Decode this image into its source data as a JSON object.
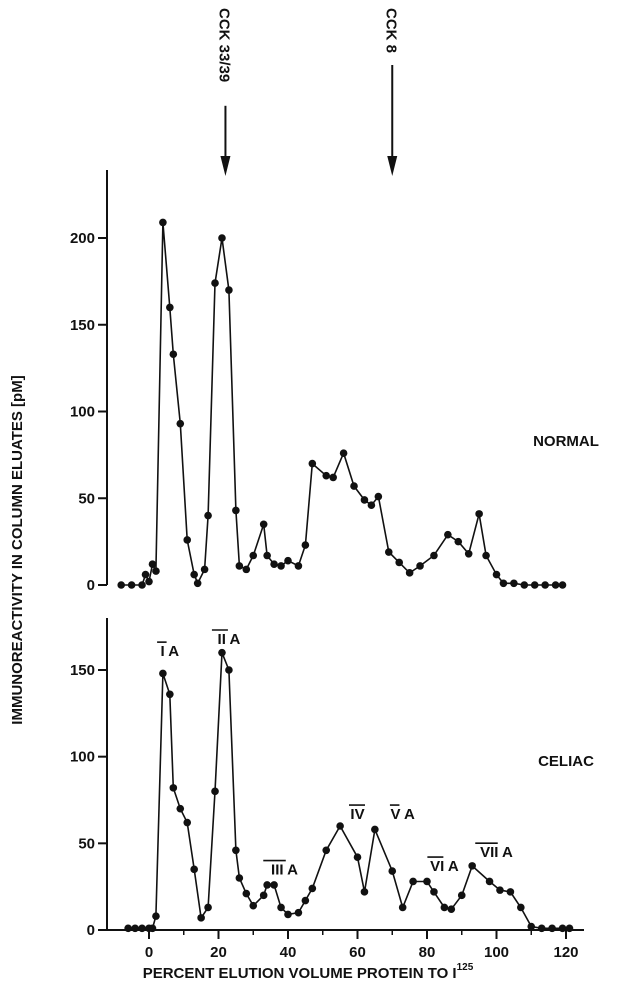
{
  "chart_data": {
    "type": "line",
    "xlabel": "PERCENT ELUTION VOLUME PROTEIN TO I",
    "xlabel_superscript": "125",
    "ylabel": "IMMUNOREACTIVITY IN COLUMN ELUATES [pM]",
    "x_ticks": [
      0,
      20,
      40,
      60,
      80,
      100,
      120
    ],
    "xlim": [
      -9,
      125
    ],
    "markers": [
      {
        "label": "CCK 33/39",
        "x": 22
      },
      {
        "label": "CCK 8",
        "x": 70
      }
    ],
    "panels": [
      {
        "label": "NORMAL",
        "ylim": [
          0,
          240
        ],
        "y_ticks": [
          0,
          50,
          100,
          150,
          200
        ],
        "x": [
          -8,
          -5,
          -2,
          -1,
          0,
          1,
          2,
          4,
          6,
          7,
          9,
          11,
          13,
          14,
          16,
          17,
          19,
          21,
          23,
          25,
          26,
          28,
          30,
          33,
          34,
          36,
          38,
          40,
          43,
          45,
          47,
          51,
          53,
          56,
          59,
          62,
          64,
          66,
          69,
          72,
          75,
          78,
          82,
          86,
          89,
          92,
          95,
          97,
          100,
          102,
          105,
          108,
          111,
          114,
          117,
          119
        ],
        "y": [
          0,
          0,
          0,
          6,
          2,
          12,
          8,
          209,
          160,
          133,
          93,
          26,
          6,
          1,
          9,
          40,
          174,
          200,
          170,
          43,
          11,
          9,
          17,
          35,
          17,
          12,
          11,
          14,
          11,
          23,
          70,
          63,
          62,
          76,
          57,
          49,
          46,
          51,
          19,
          13,
          7,
          11,
          17,
          29,
          25,
          18,
          41,
          17,
          6,
          1,
          1,
          0,
          0,
          0,
          0,
          0
        ]
      },
      {
        "label": "CELIAC",
        "ylim": [
          0,
          170
        ],
        "y_ticks": [
          0,
          50,
          100,
          150
        ],
        "x": [
          -6,
          -4,
          -2,
          0,
          1,
          2,
          4,
          6,
          7,
          9,
          11,
          13,
          15,
          17,
          19,
          21,
          23,
          25,
          26,
          28,
          30,
          33,
          34,
          36,
          38,
          40,
          43,
          45,
          47,
          51,
          55,
          60,
          62,
          65,
          70,
          73,
          76,
          80,
          82,
          85,
          87,
          90,
          93,
          98,
          101,
          104,
          107,
          110,
          113,
          116,
          119,
          121
        ],
        "y": [
          1,
          1,
          1,
          1,
          1,
          8,
          148,
          136,
          82,
          70,
          62,
          35,
          7,
          13,
          80,
          160,
          150,
          46,
          30,
          21,
          14,
          20,
          26,
          26,
          13,
          9,
          10,
          17,
          24,
          46,
          60,
          42,
          22,
          58,
          34,
          13,
          28,
          28,
          22,
          13,
          12,
          20,
          37,
          28,
          23,
          22,
          13,
          2,
          1,
          1,
          1,
          1
        ]
      }
    ],
    "peak_labels": [
      {
        "panel": 1,
        "roman": "I",
        "suffix": "A",
        "x": 6,
        "y": 158
      },
      {
        "panel": 1,
        "roman": "II",
        "suffix": "A",
        "x": 23,
        "y": 165
      },
      {
        "panel": 1,
        "roman": "III",
        "suffix": "A",
        "x": 39,
        "y": 32
      },
      {
        "panel": 1,
        "roman": "IV",
        "suffix": "",
        "x": 60,
        "y": 64
      },
      {
        "panel": 1,
        "roman": "V",
        "suffix": "A",
        "x": 73,
        "y": 64
      },
      {
        "panel": 1,
        "roman": "VI",
        "suffix": "A",
        "x": 85,
        "y": 34
      },
      {
        "panel": 1,
        "roman": "VII",
        "suffix": "A",
        "x": 100,
        "y": 42
      }
    ]
  }
}
